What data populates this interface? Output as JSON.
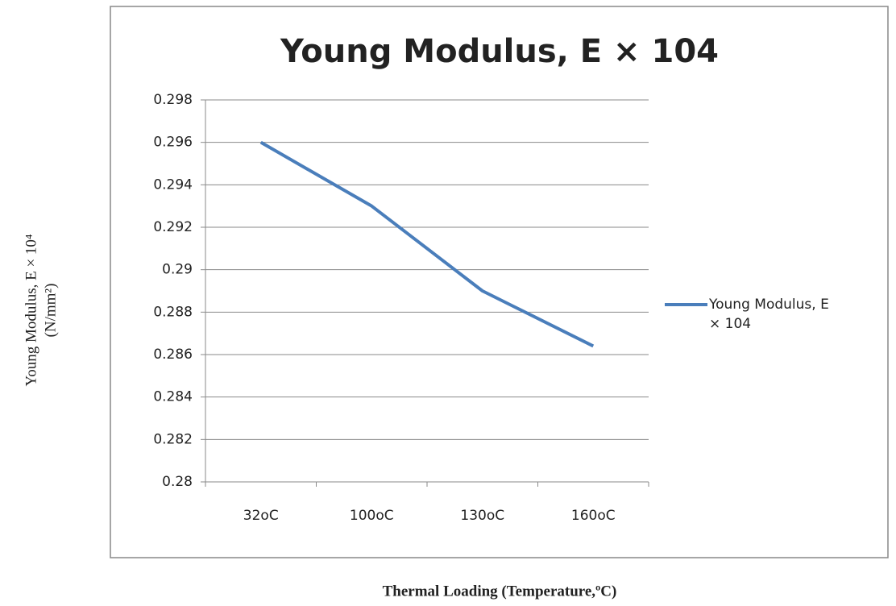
{
  "chart_data": {
    "type": "line",
    "title": "Young Modulus, E × 104",
    "categories": [
      "32oC",
      "100oC",
      "130oC",
      "160oC"
    ],
    "series": [
      {
        "name": "Young Modulus, E × 104",
        "color": "#4a7ebb",
        "values": [
          0.296,
          0.293,
          0.289,
          0.2864
        ]
      }
    ],
    "ylim": [
      0.28,
      0.298
    ],
    "yticks": [
      0.28,
      0.282,
      0.284,
      0.286,
      0.288,
      0.29,
      0.292,
      0.294,
      0.296,
      0.298
    ],
    "grid": true,
    "legend": "right",
    "y_label": [
      "Young Modulus, E × 10⁴",
      "(N/mm²)"
    ],
    "x_label": "Thermal Loading (Temperature,ºC)"
  }
}
